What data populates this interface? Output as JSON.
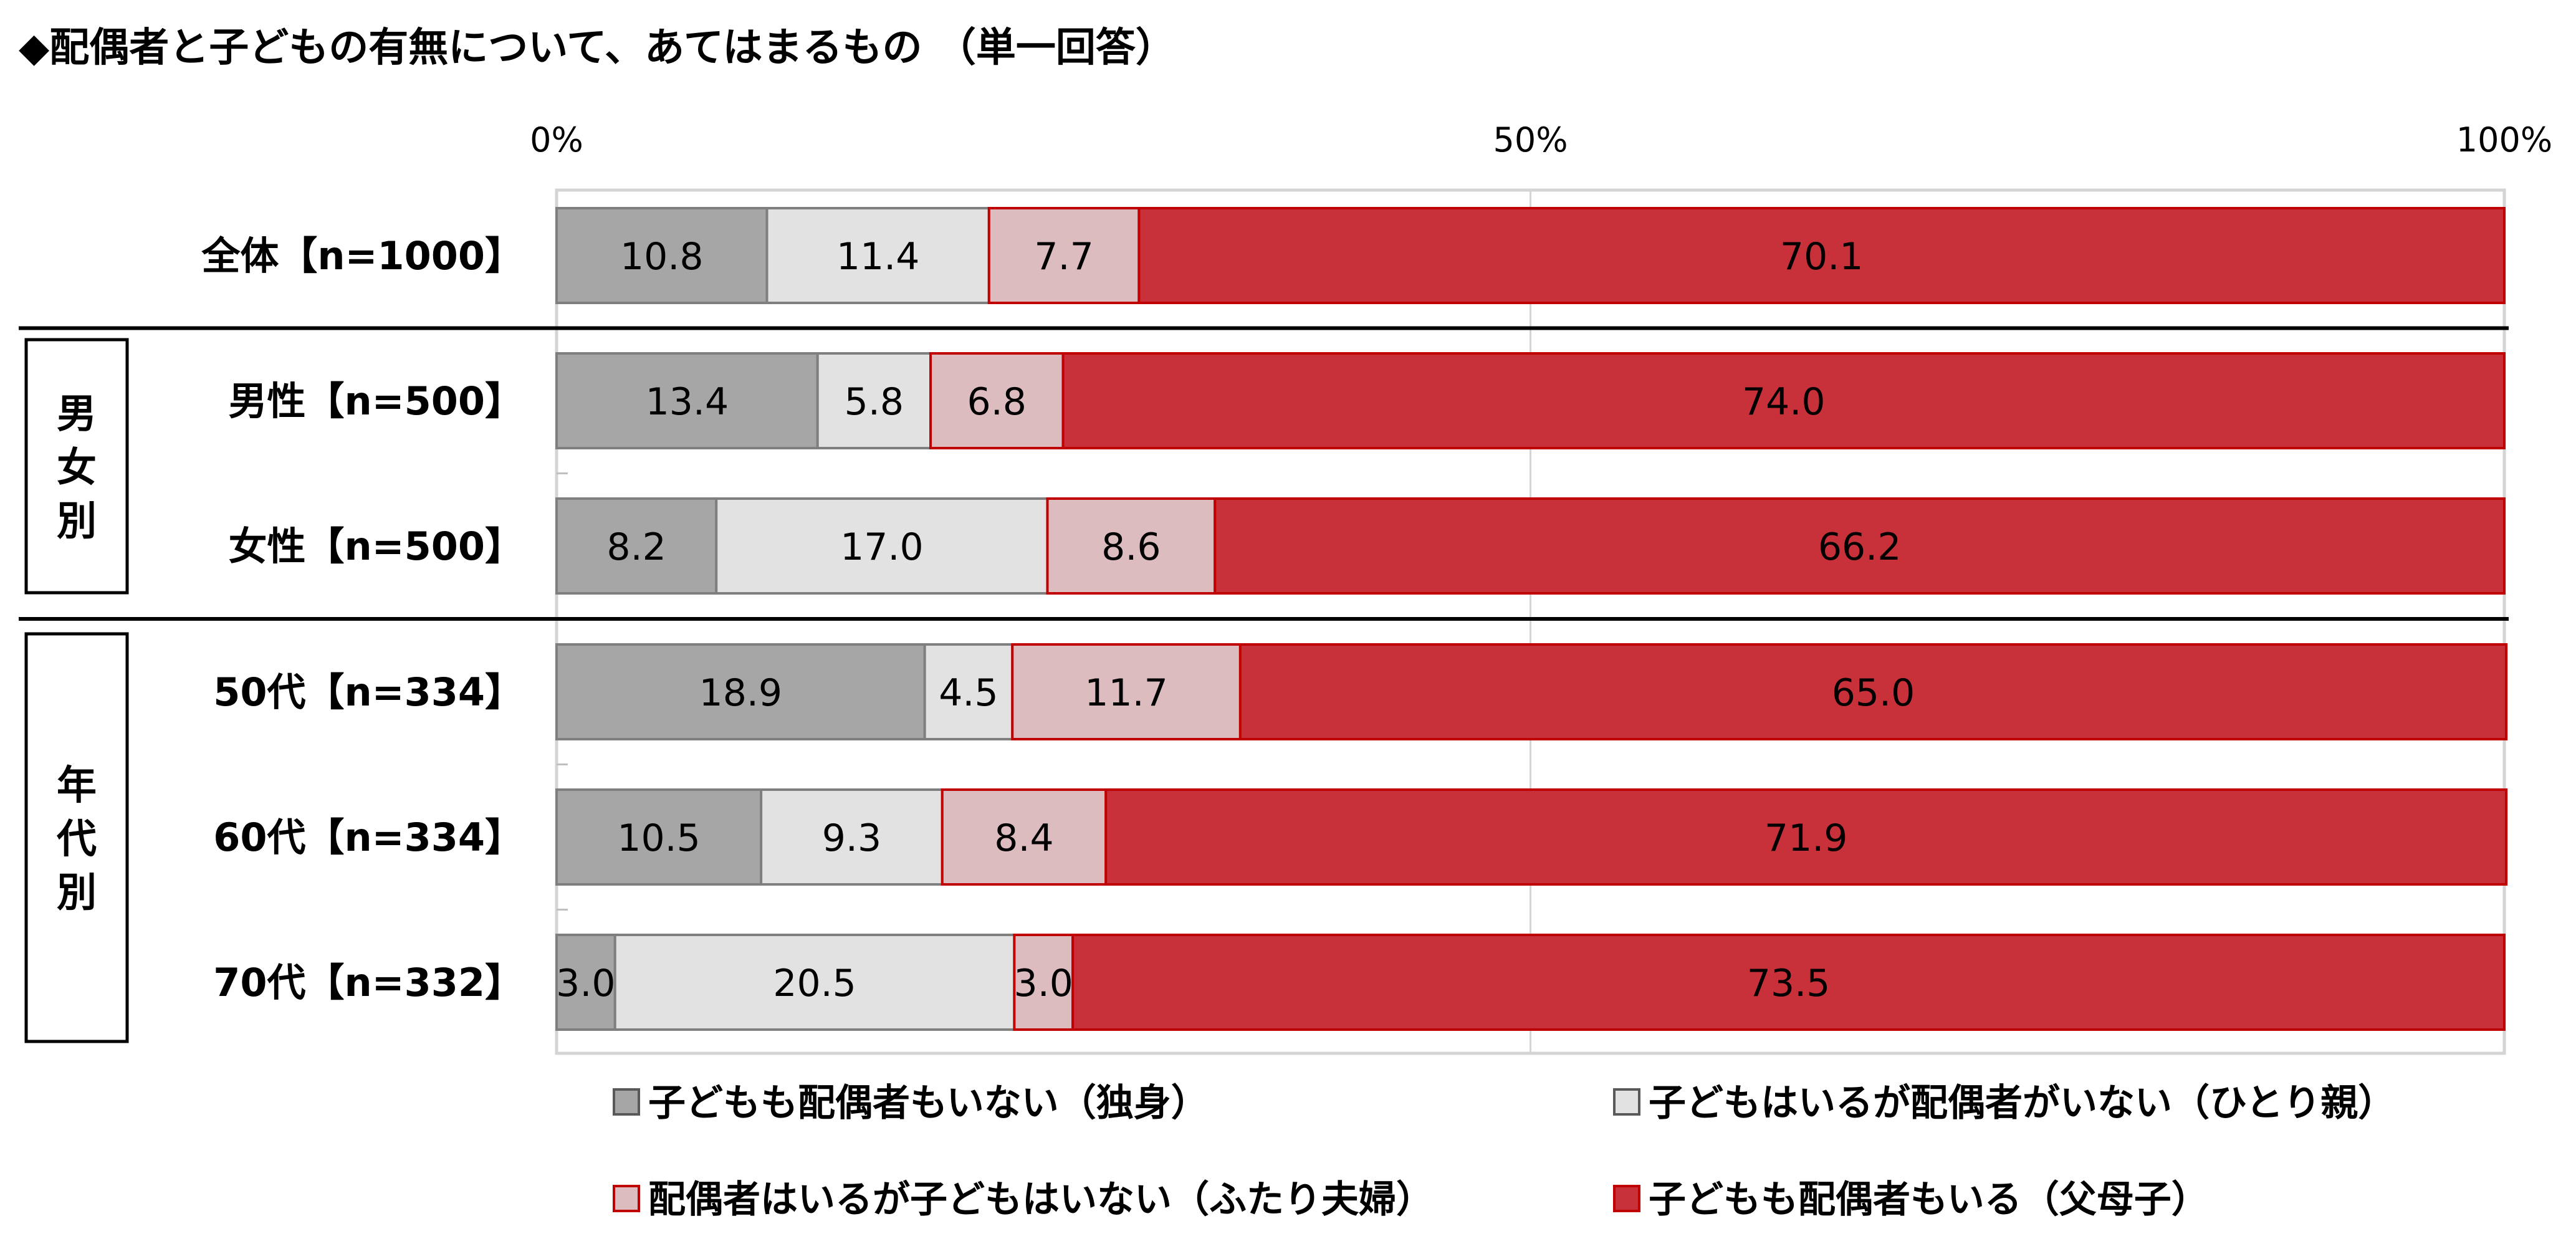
{
  "title": "◆配偶者と子どもの有無について、あてはまるもの （単一回答）",
  "chart_data": {
    "type": "bar",
    "orientation": "horizontal",
    "stacked": true,
    "percent": true,
    "xlim": [
      0,
      100
    ],
    "ticks": [
      "0%",
      "50%",
      "100%"
    ],
    "tick_values": [
      0,
      50,
      100
    ],
    "categories": [
      "全体【n=1000】",
      "男性【n=500】",
      "女性【n=500】",
      "50代【n=334】",
      "60代【n=334】",
      "70代【n=332】"
    ],
    "groups": [
      {
        "label": "男女別",
        "categories": [
          "男性【n=500】",
          "女性【n=500】"
        ]
      },
      {
        "label": "年代別",
        "categories": [
          "50代【n=334】",
          "60代【n=334】",
          "70代【n=332】"
        ]
      }
    ],
    "series": [
      {
        "name": "子どもも配偶者もいない（独身）",
        "color": "#a6a6a6",
        "values": [
          10.8,
          13.4,
          8.2,
          18.9,
          10.5,
          3.0
        ]
      },
      {
        "name": "子どもはいるが配偶者がいない（ひとり親）",
        "color": "#e2e2e2",
        "values": [
          11.4,
          5.8,
          17.0,
          4.5,
          9.3,
          20.5
        ]
      },
      {
        "name": "配偶者はいるが子どもはいない（ふたり夫婦）",
        "color": "#dcbcbe",
        "values": [
          7.7,
          6.8,
          8.6,
          11.7,
          8.4,
          3.0
        ]
      },
      {
        "name": "子どもも配偶者もいる（父母子）",
        "color": "#c8303a",
        "values": [
          70.1,
          74.0,
          66.2,
          65.0,
          71.9,
          73.5
        ]
      }
    ],
    "data_labels": true,
    "legend_position": "bottom"
  }
}
